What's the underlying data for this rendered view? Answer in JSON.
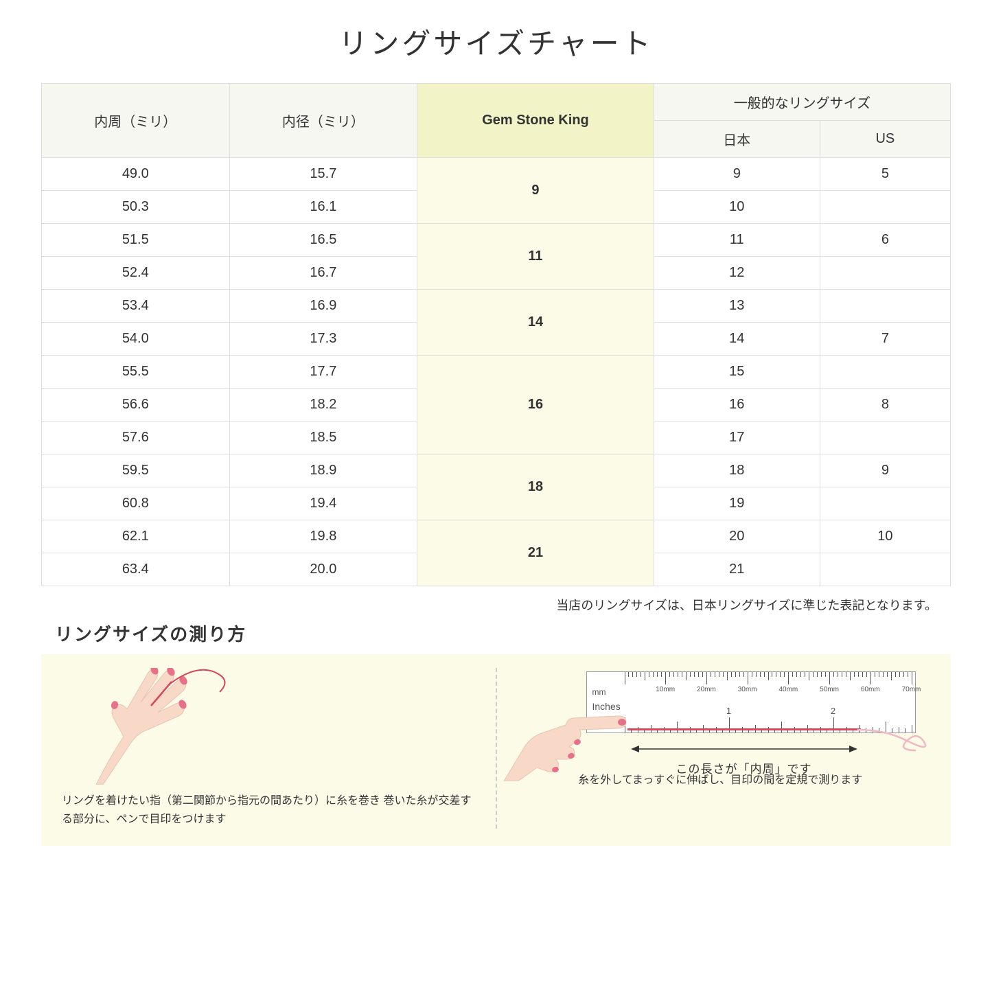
{
  "title": "リングサイズチャート",
  "headers": {
    "circumference": "内周（ミリ）",
    "diameter": "内径（ミリ）",
    "gsk": "Gem Stone King",
    "general": "一般的なリングサイズ",
    "japan": "日本",
    "us": "US"
  },
  "groups": [
    {
      "gsk": "9",
      "rows": [
        {
          "c": "49.0",
          "d": "15.7",
          "jp": "9",
          "us": "5"
        },
        {
          "c": "50.3",
          "d": "16.1",
          "jp": "10",
          "us": ""
        }
      ]
    },
    {
      "gsk": "11",
      "rows": [
        {
          "c": "51.5",
          "d": "16.5",
          "jp": "11",
          "us": "6"
        },
        {
          "c": "52.4",
          "d": "16.7",
          "jp": "12",
          "us": ""
        }
      ]
    },
    {
      "gsk": "14",
      "rows": [
        {
          "c": "53.4",
          "d": "16.9",
          "jp": "13",
          "us": ""
        },
        {
          "c": "54.0",
          "d": "17.3",
          "jp": "14",
          "us": "7"
        }
      ]
    },
    {
      "gsk": "16",
      "rows": [
        {
          "c": "55.5",
          "d": "17.7",
          "jp": "15",
          "us": ""
        },
        {
          "c": "56.6",
          "d": "18.2",
          "jp": "16",
          "us": "8"
        },
        {
          "c": "57.6",
          "d": "18.5",
          "jp": "17",
          "us": ""
        }
      ]
    },
    {
      "gsk": "18",
      "rows": [
        {
          "c": "59.5",
          "d": "18.9",
          "jp": "18",
          "us": "9"
        },
        {
          "c": "60.8",
          "d": "19.4",
          "jp": "19",
          "us": ""
        }
      ]
    },
    {
      "gsk": "21",
      "rows": [
        {
          "c": "62.1",
          "d": "19.8",
          "jp": "20",
          "us": "10"
        },
        {
          "c": "63.4",
          "d": "20.0",
          "jp": "21",
          "us": ""
        }
      ]
    }
  ],
  "note": "当店のリングサイズは、日本リングサイズに準じた表記となります。",
  "howto": {
    "title": "リングサイズの測り方",
    "left_caption": "リングを着けたい指（第二関節から指元の間あたり）に糸を巻き\n巻いた糸が交差する部分に、ペンで目印をつけます",
    "right_caption": "糸を外してまっすぐに伸ばし、目印の間を定規で測ります",
    "arrow_label": "この長さが「内周」です",
    "ruler": {
      "mm_labels": [
        "10mm",
        "20mm",
        "30mm",
        "40mm",
        "50mm",
        "60mm",
        "70mm"
      ],
      "mm_unit": "mm",
      "inches_label": "Inches",
      "inch_labels": [
        "1",
        "2"
      ]
    }
  },
  "colors": {
    "header_bg": "#f7f7f2",
    "gsk_header_bg": "#f3f3c8",
    "gsk_cell_bg": "#fbfbe8",
    "border": "#dddddd",
    "howto_bg": "#fbfbe8",
    "thread": "#d6455a",
    "skin": "#f8d9c8",
    "nail": "#e8718a"
  }
}
